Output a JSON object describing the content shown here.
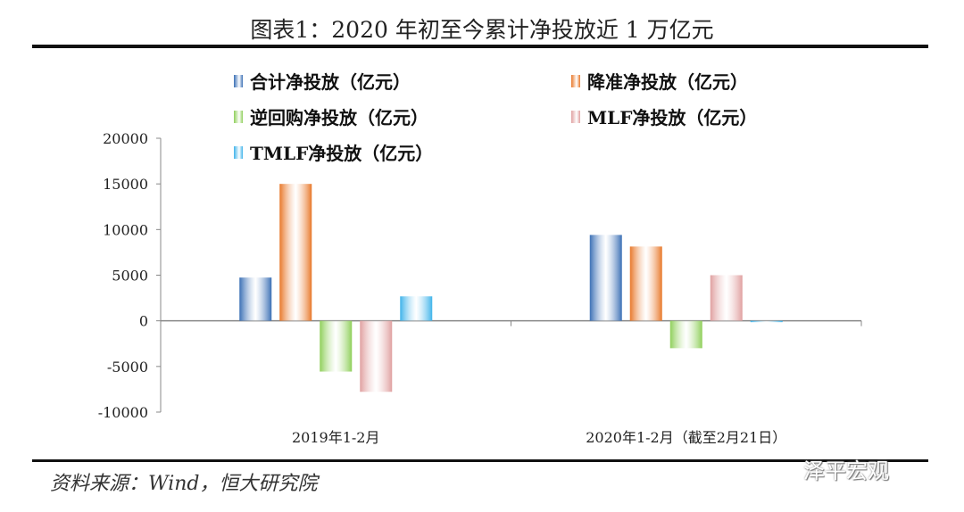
{
  "title": "图表1：2020 年初至今累计净投放近 1 万亿元",
  "source": "资料来源：Wind，恒大研究院",
  "watermark": "泽平宏观",
  "chart_data": {
    "type": "bar",
    "categories": [
      "2019年1-2月",
      "2020年1-2月（截至2月21日）"
    ],
    "series": [
      {
        "name": "合计净投放（亿元）",
        "color": "#3a6fb5",
        "values": [
          4740,
          9410
        ]
      },
      {
        "name": "降准净投放（亿元）",
        "color": "#e8782a",
        "values": [
          15000,
          8140
        ]
      },
      {
        "name": "逆回购净投放（亿元）",
        "color": "#8fcf5a",
        "values": [
          -5560,
          -3000
        ]
      },
      {
        "name": "MLF净投放（亿元）",
        "color": "#e0a0a0",
        "values": [
          -7780,
          5000
        ]
      },
      {
        "name": "TMLF净投放（亿元）",
        "color": "#3fb3ea",
        "values": [
          2680,
          -100
        ]
      }
    ],
    "ylim": [
      -10000,
      20000
    ],
    "yticks": [
      "20000",
      "15000",
      "10000",
      "5000",
      "0",
      "-5000",
      "-10000"
    ],
    "grid": false,
    "legend": "top"
  }
}
